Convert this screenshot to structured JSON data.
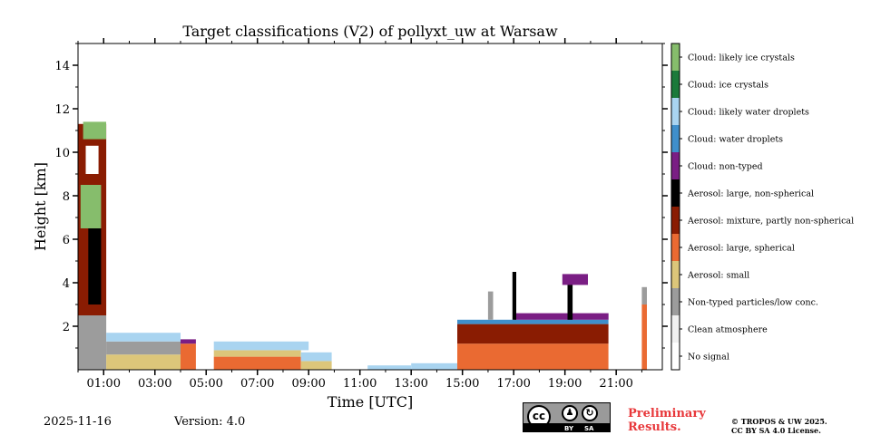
{
  "chart_data": {
    "type": "heatmap",
    "title": "Target classifications (V2) of pollyxt_uw at Warsaw",
    "xlabel": "Time [UTC]",
    "ylabel": "Height [km]",
    "xlim_hours": [
      0,
      22.8
    ],
    "ylim_km": [
      0,
      15
    ],
    "x_ticks": [
      {
        "hour": 1,
        "label": "01:00"
      },
      {
        "hour": 3,
        "label": "03:00"
      },
      {
        "hour": 5,
        "label": "05:00"
      },
      {
        "hour": 7,
        "label": "07:00"
      },
      {
        "hour": 9,
        "label": "09:00"
      },
      {
        "hour": 11,
        "label": "11:00"
      },
      {
        "hour": 13,
        "label": "13:00"
      },
      {
        "hour": 15,
        "label": "15:00"
      },
      {
        "hour": 17,
        "label": "17:00"
      },
      {
        "hour": 19,
        "label": "19:00"
      },
      {
        "hour": 21,
        "label": "21:00"
      }
    ],
    "y_ticks": [
      {
        "km": 2,
        "label": "2"
      },
      {
        "km": 4,
        "label": "4"
      },
      {
        "km": 6,
        "label": "6"
      },
      {
        "km": 8,
        "label": "8"
      },
      {
        "km": 10,
        "label": "10"
      },
      {
        "km": 12,
        "label": "12"
      },
      {
        "km": 14,
        "label": "14"
      }
    ],
    "classes": [
      {
        "code": 0,
        "label": "No signal",
        "color": "#ffffff"
      },
      {
        "code": 1,
        "label": "Clean atmosphere",
        "color": "#f0f0f0"
      },
      {
        "code": 2,
        "label": "Non-typed particles/low conc.",
        "color": "#9c9c9c"
      },
      {
        "code": 3,
        "label": "Aerosol: small",
        "color": "#dcc67a"
      },
      {
        "code": 4,
        "label": "Aerosol: large, spherical",
        "color": "#ea6a32"
      },
      {
        "code": 5,
        "label": "Aerosol: mixture, partly non-spherical",
        "color": "#8a1c02"
      },
      {
        "code": 6,
        "label": "Aerosol: large, non-spherical",
        "color": "#000000"
      },
      {
        "code": 7,
        "label": "Cloud: non-typed",
        "color": "#7a1e84"
      },
      {
        "code": 8,
        "label": "Cloud: water droplets",
        "color": "#3f8fcb"
      },
      {
        "code": 9,
        "label": "Cloud: likely water droplets",
        "color": "#a9d4f0"
      },
      {
        "code": 10,
        "label": "Cloud: ice crystals",
        "color": "#1b7a3a"
      },
      {
        "code": 11,
        "label": "Cloud: likely ice crystals",
        "color": "#86bd6c"
      }
    ],
    "regions": [
      {
        "class": 2,
        "t0": 0.0,
        "t1": 1.1,
        "h0": 0.0,
        "h1": 2.5
      },
      {
        "class": 5,
        "t0": 0.0,
        "t1": 1.1,
        "h0": 2.5,
        "h1": 11.3
      },
      {
        "class": 6,
        "t0": 0.4,
        "t1": 0.9,
        "h0": 3.0,
        "h1": 6.5
      },
      {
        "class": 11,
        "t0": 0.1,
        "t1": 0.9,
        "h0": 6.5,
        "h1": 8.5
      },
      {
        "class": 0,
        "t0": 0.3,
        "t1": 0.8,
        "h0": 9.0,
        "h1": 10.3
      },
      {
        "class": 11,
        "t0": 0.2,
        "t1": 1.1,
        "h0": 10.6,
        "h1": 11.4
      },
      {
        "class": 3,
        "t0": 1.1,
        "t1": 4.0,
        "h0": 0.0,
        "h1": 0.7
      },
      {
        "class": 2,
        "t0": 1.1,
        "t1": 4.0,
        "h0": 0.7,
        "h1": 1.3
      },
      {
        "class": 9,
        "t0": 1.1,
        "t1": 4.0,
        "h0": 1.3,
        "h1": 1.7
      },
      {
        "class": 4,
        "t0": 4.0,
        "t1": 4.6,
        "h0": 0.0,
        "h1": 1.2
      },
      {
        "class": 7,
        "t0": 4.0,
        "t1": 4.6,
        "h0": 1.2,
        "h1": 1.4
      },
      {
        "class": 4,
        "t0": 5.3,
        "t1": 8.7,
        "h0": 0.0,
        "h1": 0.6
      },
      {
        "class": 3,
        "t0": 5.3,
        "t1": 8.7,
        "h0": 0.6,
        "h1": 0.9
      },
      {
        "class": 9,
        "t0": 5.3,
        "t1": 9.0,
        "h0": 0.9,
        "h1": 1.3
      },
      {
        "class": 3,
        "t0": 8.7,
        "t1": 9.9,
        "h0": 0.0,
        "h1": 0.4
      },
      {
        "class": 9,
        "t0": 8.7,
        "t1": 9.9,
        "h0": 0.4,
        "h1": 0.8
      },
      {
        "class": 9,
        "t0": 11.3,
        "t1": 13.0,
        "h0": 0.0,
        "h1": 0.2
      },
      {
        "class": 9,
        "t0": 13.0,
        "t1": 14.8,
        "h0": 0.0,
        "h1": 0.3
      },
      {
        "class": 4,
        "t0": 14.8,
        "t1": 20.7,
        "h0": 0.0,
        "h1": 1.2
      },
      {
        "class": 5,
        "t0": 14.8,
        "t1": 20.7,
        "h0": 1.2,
        "h1": 2.1
      },
      {
        "class": 8,
        "t0": 14.8,
        "t1": 20.7,
        "h0": 2.1,
        "h1": 2.3
      },
      {
        "class": 7,
        "t0": 17.0,
        "t1": 20.7,
        "h0": 2.3,
        "h1": 2.6
      },
      {
        "class": 2,
        "t0": 16.0,
        "t1": 16.2,
        "h0": 2.3,
        "h1": 3.6
      },
      {
        "class": 6,
        "t0": 16.95,
        "t1": 17.1,
        "h0": 2.3,
        "h1": 4.5
      },
      {
        "class": 6,
        "t0": 19.1,
        "t1": 19.3,
        "h0": 2.3,
        "h1": 4.0
      },
      {
        "class": 7,
        "t0": 18.9,
        "t1": 19.9,
        "h0": 3.9,
        "h1": 4.4
      },
      {
        "class": 4,
        "t0": 22.0,
        "t1": 22.2,
        "h0": 0.0,
        "h1": 3.0
      },
      {
        "class": 2,
        "t0": 22.0,
        "t1": 22.2,
        "h0": 3.0,
        "h1": 3.8
      }
    ]
  },
  "footer": {
    "date": "2025-11-16",
    "version": "Version: 4.0",
    "preliminary_line1": "Preliminary",
    "preliminary_line2": "Results.",
    "copyright_line1": "© TROPOS & UW 2025.",
    "copyright_line2": "CC BY SA 4.0 License.",
    "license_badge": {
      "by": "BY",
      "sa": "SA",
      "cc": "cc"
    }
  }
}
